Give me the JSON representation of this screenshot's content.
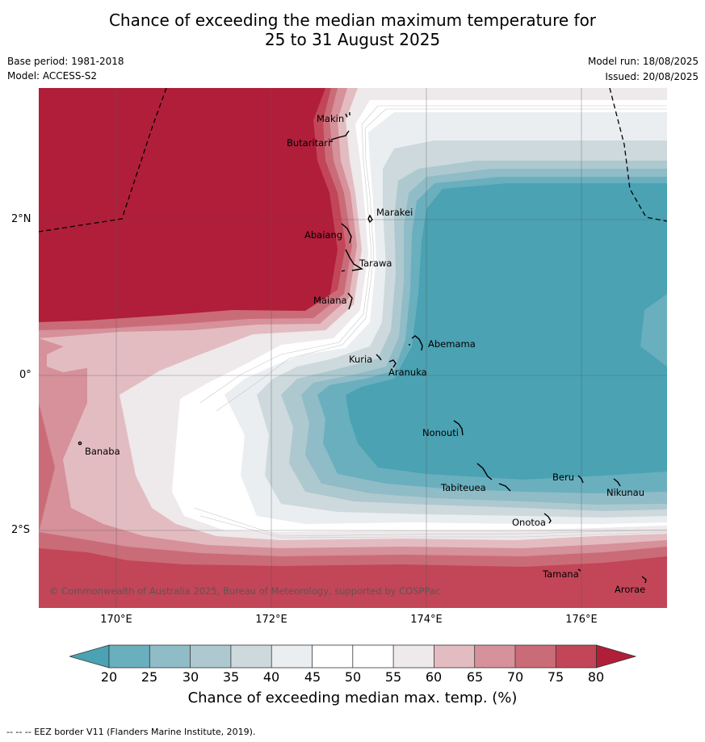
{
  "title_line1": "Chance of exceeding the median maximum temperature for",
  "title_line2": "25 to 31 August 2025",
  "meta": {
    "base_period": "Base period: 1981-2018",
    "model": "Model: ACCESS-S2",
    "model_run": "Model run: 18/08/2025",
    "issued": "Issued: 20/08/2025"
  },
  "map": {
    "lat_labels": [
      "2°N",
      "0°",
      "2°S"
    ],
    "lon_labels": [
      "170°E",
      "172°E",
      "174°E",
      "176°E"
    ],
    "places": [
      "Makin",
      "Butaritari",
      "Marakei",
      "Abaiang",
      "Tarawa",
      "Maiana",
      "Abemama",
      "Kuria",
      "Aranuka",
      "Nonouti",
      "Banaba",
      "Beru",
      "Nikunau",
      "Tabiteuea",
      "Onotoa",
      "Tamana",
      "Arorae"
    ],
    "copyright": "© Commonwealth of Australia 2025, Bureau of Meteorology, supported by COSPPac"
  },
  "colorbar": {
    "ticks": [
      "20",
      "25",
      "30",
      "35",
      "40",
      "45",
      "50",
      "55",
      "60",
      "65",
      "70",
      "75",
      "80"
    ],
    "label": "Chance of exceeding median max. temp. (%)",
    "colors": {
      "lt20": "#4aa2b3",
      "20-25": "#6aafbe",
      "25-30": "#8fbcc7",
      "30-35": "#adc9cf",
      "35-40": "#cdd9dd",
      "40-45": "#eaeef0",
      "45-50": "#ffffff",
      "50-55": "#ffffff",
      "55-60": "#eee9ea",
      "60-65": "#e3bcc1",
      "65-70": "#d6919a",
      "70-75": "#ca6c78",
      "75-80": "#c24657",
      "gt80": "#b01e3a"
    }
  },
  "footnote": "--  --  -- EEZ border V11 (Flanders Marine Institute, 2019)."
}
